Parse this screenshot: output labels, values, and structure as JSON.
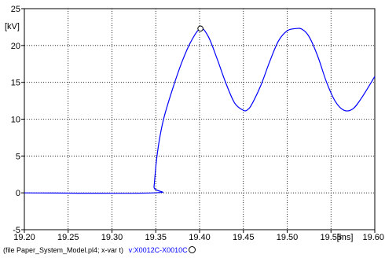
{
  "chart_data": {
    "type": "line",
    "ylabel": "[kV]",
    "xlabel": "[ms]",
    "xlim": [
      19.2,
      19.6
    ],
    "ylim": [
      -5,
      25
    ],
    "x_ticks": [
      "19.20",
      "19.25",
      "19.30",
      "19.35",
      "19.40",
      "19.45",
      "19.50",
      "19.55",
      "19.60"
    ],
    "y_ticks": [
      "25",
      "20",
      "15",
      "10",
      "5",
      "0",
      "-5"
    ],
    "grid": true,
    "series": [
      {
        "name": "v:X0012C-X0010C",
        "color": "#0000ff",
        "marker": "circle",
        "marker_point": [
          19.401,
          22.3
        ],
        "x": [
          19.2,
          19.347,
          19.348,
          19.351,
          19.355,
          19.36,
          19.37,
          19.38,
          19.39,
          19.401,
          19.41,
          19.42,
          19.43,
          19.44,
          19.45,
          19.455,
          19.46,
          19.47,
          19.48,
          19.49,
          19.5,
          19.51,
          19.517,
          19.525,
          19.535,
          19.545,
          19.555,
          19.565,
          19.575,
          19.585,
          19.6
        ],
        "y": [
          0,
          0,
          0.8,
          4.6,
          7.8,
          10.5,
          14.4,
          17.8,
          20.5,
          22.3,
          21.2,
          18.2,
          14.9,
          12.2,
          11.2,
          11.3,
          12.1,
          14.6,
          17.8,
          20.6,
          22.0,
          22.3,
          22.2,
          21.2,
          18.5,
          15.0,
          12.4,
          11.2,
          11.4,
          12.9,
          15.8
        ]
      }
    ]
  },
  "footer": {
    "file_text": "(file Paper_System_Model.pl4; x-var t)",
    "series_text": "v:X0012C-X0010C"
  }
}
